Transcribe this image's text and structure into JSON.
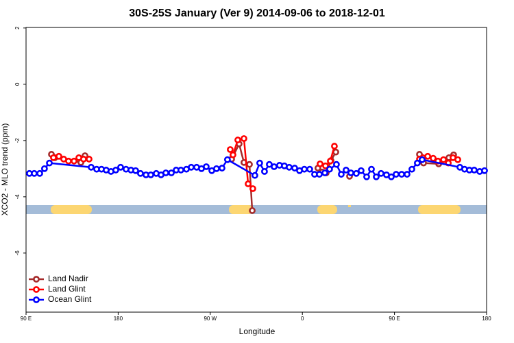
{
  "chart_data": {
    "type": "line",
    "title": "30S-25S January (Ver 9)   2014-09-06 to 2018-12-01",
    "x_label": "Longitude",
    "y_label": "XCO2 - MLO trend (ppm)",
    "xlim": [
      90,
      540
    ],
    "ylim": [
      -8.1,
      2.02
    ],
    "xticks": [
      {
        "value": 90,
        "label": "90 E"
      },
      180,
      {
        "value": 270,
        "label": "90 W"
      },
      {
        "value": 360,
        "label": "0"
      },
      {
        "value": 450,
        "label": "90 E"
      },
      {
        "value": 540,
        "label": "180"
      }
    ],
    "yticks": [
      -6,
      -4,
      -2,
      0,
      2
    ],
    "legend": "bottom-left",
    "series": [
      {
        "name": "Land Nadir",
        "color": "#a52a2a",
        "x": [
          114.8,
          118.1,
          143.6,
          147.6,
          null,
          290.9,
          298.2,
          302.9,
          308.3,
          311,
          null,
          375.2,
          379.3,
          383.3,
          388,
          392.7,
          null,
          406.1,
          null,
          474.4,
          478.4,
          493.2,
          503.2,
          507.8
        ],
        "values": [
          -2.49,
          -2.61,
          -2.78,
          -2.54,
          null,
          -2.66,
          -2.12,
          -2.78,
          -2.85,
          -4.49,
          null,
          -2.98,
          -3.12,
          -3.15,
          -2.71,
          -2.41,
          null,
          -3.27,
          null,
          -2.49,
          -2.8,
          -2.83,
          -2.61,
          -2.51
        ]
      },
      {
        "name": "Land Glint",
        "color": "#ff0000",
        "x": [
          116.8,
          122.1,
          126.8,
          131.5,
          136.9,
          141.6,
          146.2,
          151.6,
          null,
          289.5,
          292.2,
          296.9,
          302.9,
          307,
          311.6,
          null,
          377.3,
          382.6,
          387.3,
          391.3,
          null,
          474.4,
          477.8,
          482.5,
          487.8,
          492.5,
          497.9,
          502.6,
          507.2,
          511.9
        ],
        "values": [
          -2.61,
          -2.56,
          -2.66,
          -2.73,
          -2.73,
          -2.61,
          -2.66,
          -2.66,
          null,
          -2.32,
          -2.51,
          -1.98,
          -1.93,
          -3.54,
          -3.71,
          null,
          -2.83,
          -2.9,
          -2.73,
          -2.2,
          null,
          -2.66,
          -2.61,
          -2.56,
          -2.63,
          -2.73,
          -2.68,
          -2.8,
          -2.61,
          -2.68
        ]
      },
      {
        "name": "Ocean Glint",
        "color": "#0000ff",
        "x": [
          93.3,
          98,
          103.4,
          108,
          112.8,
          153.6,
          159,
          163.7,
          168.3,
          173,
          177.7,
          182.4,
          187.7,
          192.5,
          197.1,
          201.8,
          207.2,
          211.9,
          217.2,
          221.9,
          226.6,
          232,
          236.7,
          241.3,
          246.7,
          251.4,
          256.7,
          261.4,
          266.1,
          271.5,
          276.1,
          281.5,
          286.8,
          313.6,
          318.3,
          323,
          327.7,
          332.4,
          337.7,
          342.4,
          347.1,
          352.5,
          357.2,
          361.9,
          367.2,
          371.9,
          376.6,
          382,
          386.6,
          393.3,
          398,
          402.7,
          407.4,
          412.7,
          417.4,
          422.8,
          427.5,
          432.2,
          436.9,
          442.2,
          446.9,
          451.6,
          457,
          462.3,
          467,
          472.3,
          477,
          513.9,
          518.5,
          523.2,
          527.9,
          533.3,
          538
        ],
        "values": [
          -3.17,
          -3.17,
          -3.17,
          -3.0,
          -2.8,
          -2.95,
          -3.02,
          -3.02,
          -3.05,
          -3.1,
          -3.05,
          -2.95,
          -3.02,
          -3.05,
          -3.07,
          -3.17,
          -3.22,
          -3.22,
          -3.17,
          -3.22,
          -3.15,
          -3.15,
          -3.05,
          -3.05,
          -3.02,
          -2.95,
          -2.95,
          -3.0,
          -2.93,
          -3.07,
          -3.0,
          -2.98,
          -2.68,
          -3.24,
          -2.8,
          -3.1,
          -2.85,
          -2.93,
          -2.88,
          -2.9,
          -2.95,
          -2.98,
          -3.07,
          -3.02,
          -3.02,
          -3.2,
          -3.2,
          -3.15,
          -3.02,
          -2.85,
          -3.2,
          -3.05,
          -3.15,
          -3.17,
          -3.07,
          -3.29,
          -3.02,
          -3.29,
          -3.17,
          -3.22,
          -3.29,
          -3.2,
          -3.2,
          -3.2,
          -3.02,
          -2.8,
          -2.68,
          -2.95,
          -3.02,
          -3.05,
          -3.05,
          -3.1,
          -3.07
        ]
      }
    ]
  }
}
